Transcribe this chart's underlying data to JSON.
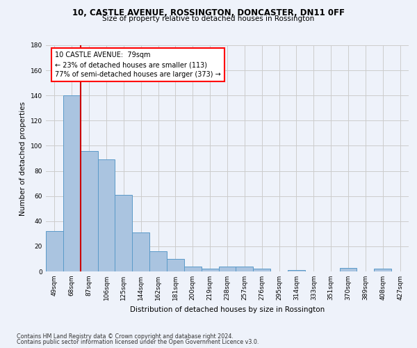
{
  "title1": "10, CASTLE AVENUE, ROSSINGTON, DONCASTER, DN11 0FF",
  "title2": "Size of property relative to detached houses in Rossington",
  "xlabel": "Distribution of detached houses by size in Rossington",
  "ylabel": "Number of detached properties",
  "footnote1": "Contains HM Land Registry data © Crown copyright and database right 2024.",
  "footnote2": "Contains public sector information licensed under the Open Government Licence v3.0.",
  "categories": [
    "49sqm",
    "68sqm",
    "87sqm",
    "106sqm",
    "125sqm",
    "144sqm",
    "162sqm",
    "181sqm",
    "200sqm",
    "219sqm",
    "238sqm",
    "257sqm",
    "276sqm",
    "295sqm",
    "314sqm",
    "333sqm",
    "351sqm",
    "370sqm",
    "389sqm",
    "408sqm",
    "427sqm"
  ],
  "values": [
    32,
    140,
    96,
    89,
    61,
    31,
    16,
    10,
    4,
    2,
    4,
    4,
    2,
    0,
    1,
    0,
    0,
    3,
    0,
    2,
    0
  ],
  "bar_color": "#aac4e0",
  "bar_edge_color": "#5a9ac8",
  "ylim": [
    0,
    180
  ],
  "yticks": [
    0,
    20,
    40,
    60,
    80,
    100,
    120,
    140,
    160,
    180
  ],
  "red_line_x": 1.5,
  "annotation_text": "10 CASTLE AVENUE:  79sqm\n← 23% of detached houses are smaller (113)\n77% of semi-detached houses are larger (373) →",
  "annotation_box_color": "white",
  "annotation_box_edge_color": "red",
  "red_line_color": "#cc0000",
  "grid_color": "#cccccc",
  "background_color": "#eef2fa"
}
